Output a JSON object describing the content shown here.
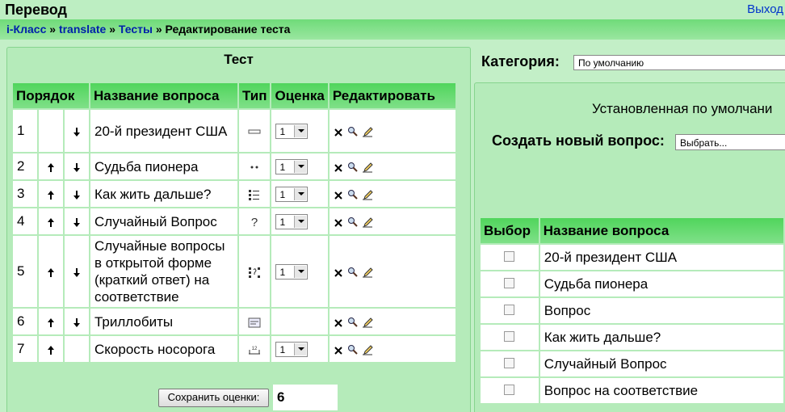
{
  "header": {
    "title": "Перевод",
    "logout": "Выход"
  },
  "breadcrumb": {
    "separator": "»",
    "items": [
      "i-Класс",
      "translate",
      "Тесты",
      "Редактирование теста"
    ]
  },
  "quiz": {
    "title": "Тест",
    "columns": [
      "Порядок",
      "Название вопроса",
      "Тип",
      "Оценка",
      "Редактировать"
    ],
    "rows": [
      {
        "order": "1",
        "name": "20-й президент США",
        "grade": "1"
      },
      {
        "order": "2",
        "name": "Судьба пионера",
        "grade": "1"
      },
      {
        "order": "3",
        "name": "Как жить дальше?",
        "grade": "1"
      },
      {
        "order": "4",
        "name": "Случайный Вопрос",
        "grade": "1"
      },
      {
        "order": "5",
        "name": "Случайные вопросы в открытой форме (краткий ответ) на соответствие",
        "grade": "1"
      },
      {
        "order": "6",
        "name": "Триллобиты"
      },
      {
        "order": "7",
        "name": "Скорость носорога",
        "grade": "1"
      }
    ],
    "save_button": "Сохранить оценки:",
    "total": "6"
  },
  "bank": {
    "category_label": "Категория:",
    "category_value": "По умолчанию",
    "default_text": "Установленная по умолчани",
    "create_label": "Создать новый вопрос:",
    "create_value": "Выбрать...",
    "columns": [
      "Выбор",
      "Название вопроса"
    ],
    "rows": [
      "20-й президент США",
      "Судьба пионера",
      "Вопрос",
      "Как жить дальше?",
      "Случайный Вопрос",
      "Вопрос на соответствие"
    ]
  }
}
